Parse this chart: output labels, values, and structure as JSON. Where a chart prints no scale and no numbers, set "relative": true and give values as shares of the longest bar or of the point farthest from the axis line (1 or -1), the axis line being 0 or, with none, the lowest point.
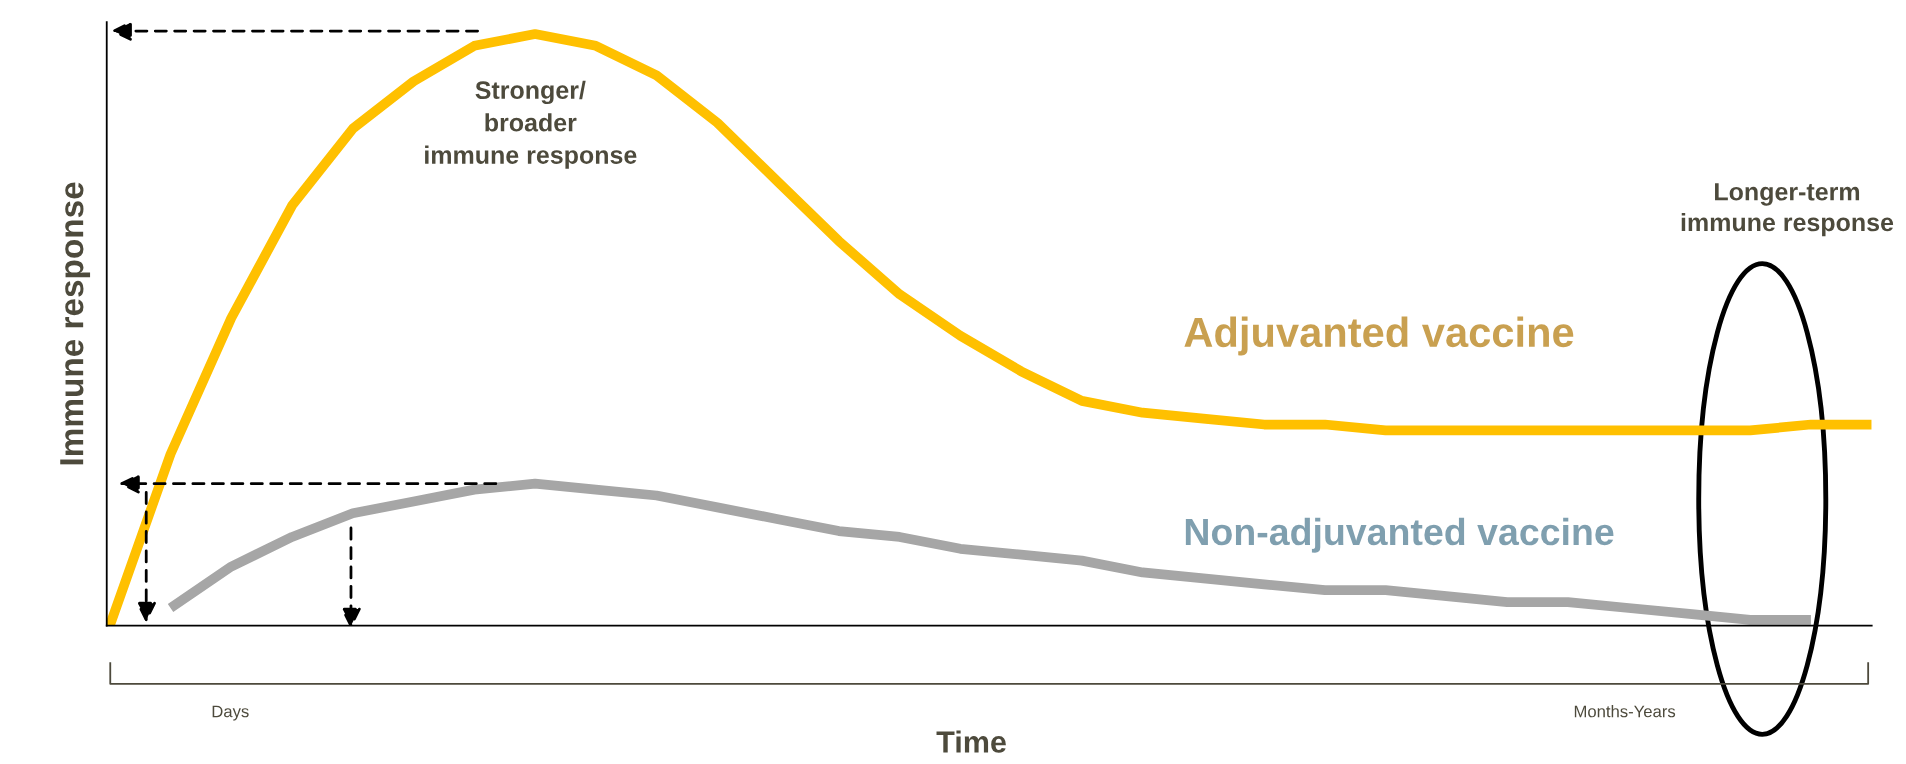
{
  "chart_data": {
    "type": "line",
    "relative": true,
    "ylabel": "Immune response",
    "xlabel": "Time",
    "categories": [
      null,
      null,
      null,
      null,
      null,
      null,
      null,
      null,
      null,
      null,
      null,
      null,
      null,
      null,
      null,
      null,
      null,
      null,
      null,
      null,
      null,
      null,
      null,
      null,
      null,
      null,
      null,
      null,
      null,
      null
    ],
    "series": [
      {
        "name": "Adjuvanted vaccine",
        "color": "#ffc000",
        "values": [
          0,
          0.29,
          0.52,
          0.71,
          0.84,
          0.92,
          0.98,
          1,
          0.98,
          0.93,
          0.85,
          0.75,
          0.65,
          0.56,
          0.49,
          0.43,
          0.38,
          0.36,
          0.35,
          0.34,
          0.34,
          0.33,
          0.33,
          0.33,
          0.33,
          0.33,
          0.33,
          0.33,
          0.34,
          0.34
        ]
      },
      {
        "name": "Non-adjuvanted vaccine",
        "color": "#a6a6a6",
        "values": [
          null,
          0.03,
          0.1,
          0.15,
          0.19,
          0.21,
          0.23,
          0.24,
          0.23,
          0.22,
          0.2,
          0.18,
          0.16,
          0.15,
          0.13,
          0.12,
          0.11,
          0.09,
          0.08,
          0.07,
          0.06,
          0.06,
          0.05,
          0.04,
          0.04,
          0.03,
          0.02,
          0.01,
          0.01,
          null
        ]
      }
    ],
    "annotations": [
      "Stronger/\nbroader\nimmune response",
      "Longer-term\nimmune response",
      "Days",
      "Months-Years"
    ],
    "legend": false,
    "marker": "none",
    "line_style": "solid"
  }
}
